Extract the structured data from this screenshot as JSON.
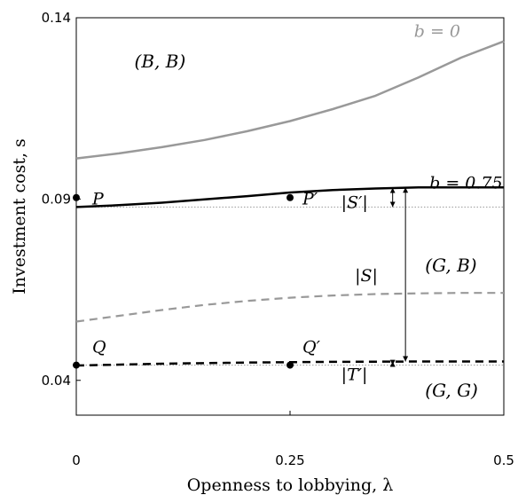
{
  "chart_data": {
    "type": "line",
    "title": "",
    "xlabel": "Openness to lobbying, λ",
    "ylabel": "Investment cost, s",
    "xlim": [
      0,
      0.5
    ],
    "ylim": [
      0.0304,
      0.14
    ],
    "x_ticks": [
      "0",
      "0.25",
      "0.5"
    ],
    "y_ticks": [
      "0.04",
      "0.09",
      "0.14"
    ],
    "grid": false,
    "legend": "none",
    "colors": {
      "black": "#000000",
      "gray": "#999999",
      "ref": "#9a9a9a"
    },
    "series": [
      {
        "name": "b = 0",
        "style": "solid-gray",
        "x": [
          0,
          0.05,
          0.1,
          0.15,
          0.2,
          0.25,
          0.3,
          0.35,
          0.4,
          0.45,
          0.5
        ],
        "y": [
          0.1012,
          0.1026,
          0.1043,
          0.1063,
          0.1087,
          0.1115,
          0.1148,
          0.1185,
          0.1235,
          0.129,
          0.1335
        ]
      },
      {
        "name": "b = 0.75",
        "style": "solid-black",
        "x": [
          0,
          0.05,
          0.1,
          0.15,
          0.2,
          0.25,
          0.3,
          0.35,
          0.4,
          0.45,
          0.5
        ],
        "y": [
          0.0878,
          0.0883,
          0.089,
          0.0899,
          0.0908,
          0.0918,
          0.0925,
          0.0929,
          0.0932,
          0.0932,
          0.0932
        ]
      },
      {
        "style": "dashed-gray",
        "x": [
          0,
          0.05,
          0.1,
          0.15,
          0.2,
          0.25,
          0.3,
          0.35,
          0.4,
          0.45,
          0.5
        ],
        "y": [
          0.0562,
          0.0578,
          0.0594,
          0.0608,
          0.0619,
          0.0628,
          0.0634,
          0.0638,
          0.064,
          0.0641,
          0.0641
        ]
      },
      {
        "style": "dashed-black",
        "x": [
          0,
          0.1,
          0.2,
          0.25,
          0.3,
          0.4,
          0.5
        ],
        "y": [
          0.0441,
          0.0446,
          0.0449,
          0.045,
          0.0451,
          0.0452,
          0.0452
        ]
      }
    ],
    "reference_lines": [
      {
        "y": 0.0878,
        "style": "dotted"
      },
      {
        "y": 0.0442,
        "style": "dotted"
      }
    ],
    "points": [
      {
        "label": "P",
        "x": 0,
        "y": 0.0904
      },
      {
        "label": "P′",
        "x": 0.25,
        "y": 0.0904
      },
      {
        "label": "Q",
        "x": 0,
        "y": 0.0442
      },
      {
        "label": "Q′",
        "x": 0.25,
        "y": 0.0442
      }
    ],
    "brackets": [
      {
        "label": "|S′|",
        "x": 0.37,
        "y_from": 0.0878,
        "y_to": 0.0931
      },
      {
        "label": "|S|",
        "x": 0.385,
        "y_from": 0.0452,
        "y_to": 0.0932
      },
      {
        "label": "|T′|",
        "x": 0.37,
        "y_from": 0.0442,
        "y_to": 0.0452
      }
    ],
    "region_labels": [
      {
        "text": "(B, B)",
        "x": 0.068,
        "y": 0.128
      },
      {
        "text": "(G, B)",
        "x": 0.408,
        "y": 0.0718
      },
      {
        "text": "(G, G)",
        "x": 0.408,
        "y": 0.0372
      }
    ],
    "curve_labels": [
      {
        "text": "b = 0",
        "x": 0.395,
        "y": 0.1365
      },
      {
        "text": "b = 0.75",
        "x": 0.413,
        "y": 0.0946
      }
    ]
  }
}
